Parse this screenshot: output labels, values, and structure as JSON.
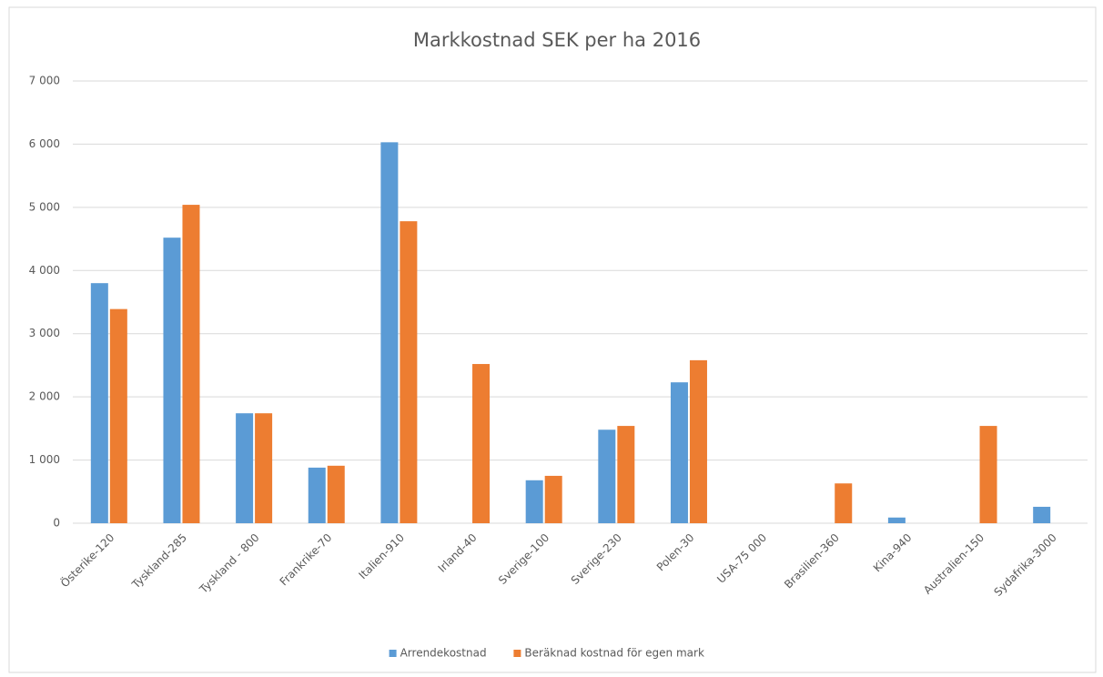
{
  "chart_data": {
    "type": "bar",
    "title": "Markkostnad SEK per ha 2016",
    "categories": [
      "Österike-120",
      "Tyskland-285",
      "Tyskland - 800",
      "Frankrike-70",
      "Italien-910",
      "Irland-40",
      "Sverige-100",
      "Sverige-230",
      "Polen-30",
      "USA-75 000",
      "Brasilien-360",
      "Kina-940",
      "Australien-150",
      "Sydafrika-3000"
    ],
    "series": [
      {
        "name": "Arrendekostnad",
        "color": "#5b9bd5",
        "values": [
          3800,
          4520,
          1740,
          880,
          6030,
          null,
          680,
          1480,
          2230,
          null,
          null,
          90,
          null,
          260
        ]
      },
      {
        "name": "Beräknad kostnad för egen mark",
        "color": "#ed7d31",
        "values": [
          3390,
          5040,
          1740,
          910,
          4780,
          2520,
          750,
          1540,
          2580,
          null,
          630,
          null,
          1540,
          null
        ]
      }
    ],
    "ylim": [
      0,
      7000
    ],
    "yticks": [
      0,
      {
        "value": 1000,
        "label": "1 000"
      },
      {
        "value": 2000,
        "label": "2 000"
      },
      {
        "value": 3000,
        "label": "3 000"
      },
      {
        "value": 4000,
        "label": "4 000"
      },
      {
        "value": 5000,
        "label": "5 000"
      },
      {
        "value": 6000,
        "label": "6 000"
      },
      {
        "value": 7000,
        "label": "7 000"
      }
    ],
    "grid": true,
    "legend": "bottom"
  }
}
